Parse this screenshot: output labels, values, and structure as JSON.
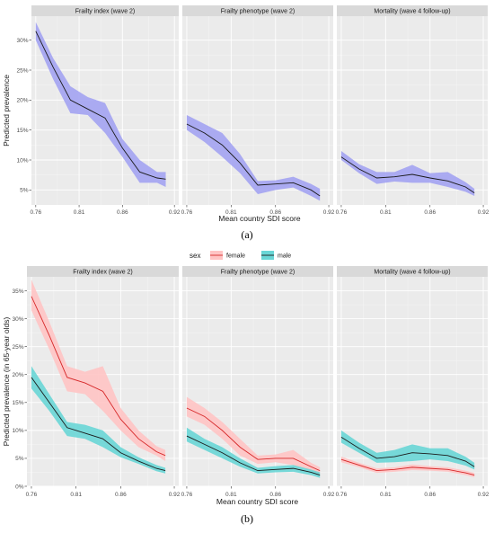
{
  "figure_labels": {
    "a": "(a)",
    "b": "(b)"
  },
  "colors": {
    "panel_bg": "#ebebeb",
    "grid_major": "#ffffff",
    "strip_bg": "#d9d9d9",
    "overall_ribbon": "#a3a3f2",
    "overall_line": "#1a1a1a",
    "female_ribbon": "#ffc4c4",
    "female_line": "#d62728",
    "male_ribbon": "#69d6d6",
    "male_line": "#1a1a1a"
  },
  "chart_data": [
    {
      "type": "line",
      "id": "a",
      "xlabel": "Mean country SDI score",
      "ylabel": "Predicted prevalence",
      "x_ticks": [
        "0.76",
        "0.81",
        "0.86",
        "0.92"
      ],
      "x_tick_values": [
        0.76,
        0.81,
        0.86,
        0.92
      ],
      "xlim": [
        0.755,
        0.925
      ],
      "y_ticks": [
        "5%",
        "10%",
        "15%",
        "20%",
        "25%",
        "30%"
      ],
      "y_tick_values": [
        5,
        10,
        15,
        20,
        25,
        30
      ],
      "ylim": [
        2.5,
        34
      ],
      "grid": true,
      "facets": [
        {
          "title": "Frailty index (wave 2)",
          "series": [
            {
              "x": [
                0.76,
                0.78,
                0.8,
                0.82,
                0.84,
                0.86,
                0.88,
                0.9,
                0.91
              ],
              "y": [
                31.5,
                25.5,
                20.0,
                18.5,
                17.0,
                12.0,
                8.0,
                7.0,
                6.8
              ],
              "lower": [
                30.0,
                23.5,
                17.8,
                17.5,
                14.5,
                10.5,
                6.2,
                6.2,
                5.5
              ],
              "upper": [
                33.0,
                27.0,
                22.3,
                20.5,
                19.5,
                13.5,
                10.0,
                8.0,
                8.0
              ]
            }
          ]
        },
        {
          "title": "Frailty phenotype (wave 2)",
          "series": [
            {
              "x": [
                0.76,
                0.78,
                0.8,
                0.82,
                0.84,
                0.86,
                0.88,
                0.9,
                0.91
              ],
              "y": [
                16.0,
                14.5,
                12.5,
                9.5,
                5.8,
                6.0,
                6.2,
                5.0,
                4.0
              ],
              "lower": [
                15.0,
                13.0,
                10.5,
                7.8,
                4.3,
                5.0,
                5.4,
                4.0,
                3.2
              ],
              "upper": [
                17.5,
                16.0,
                14.5,
                11.0,
                6.5,
                6.6,
                7.2,
                6.0,
                5.2
              ]
            }
          ]
        },
        {
          "title": "Mortality (wave 4 follow-up)",
          "series": [
            {
              "x": [
                0.76,
                0.78,
                0.8,
                0.82,
                0.84,
                0.86,
                0.88,
                0.9,
                0.91
              ],
              "y": [
                10.5,
                8.5,
                7.0,
                7.2,
                7.6,
                7.0,
                6.5,
                5.5,
                4.5
              ],
              "lower": [
                10.0,
                7.8,
                6.0,
                6.4,
                6.2,
                6.2,
                5.5,
                4.7,
                4.0
              ],
              "upper": [
                11.5,
                9.3,
                8.0,
                8.0,
                9.2,
                7.8,
                8.0,
                6.3,
                5.2
              ]
            }
          ]
        }
      ]
    },
    {
      "type": "line",
      "id": "b",
      "legend": {
        "title": "sex",
        "placement": "top",
        "entries": [
          {
            "key": "female",
            "label": "female"
          },
          {
            "key": "male",
            "label": "male"
          }
        ]
      },
      "xlabel": "Mean country SDI score",
      "ylabel": "Predicted prevalence (in 65-year olds)",
      "x_ticks": [
        "0.76",
        "0.81",
        "0.86",
        "0.92"
      ],
      "x_tick_values": [
        0.76,
        0.81,
        0.86,
        0.92
      ],
      "xlim": [
        0.755,
        0.925
      ],
      "y_ticks": [
        "0%",
        "5%",
        "10%",
        "15%",
        "20%",
        "25%",
        "30%",
        "35%"
      ],
      "y_tick_values": [
        0,
        5,
        10,
        15,
        20,
        25,
        30,
        35
      ],
      "ylim": [
        0,
        37.5
      ],
      "grid": true,
      "facets": [
        {
          "title": "Frailty index (wave 2)",
          "series": [
            {
              "key": "female",
              "x": [
                0.76,
                0.78,
                0.8,
                0.82,
                0.84,
                0.86,
                0.88,
                0.9,
                0.91
              ],
              "y": [
                34.0,
                27.0,
                19.5,
                18.5,
                17.0,
                12.0,
                8.5,
                6.2,
                5.5
              ],
              "lower": [
                31.5,
                24.5,
                17.0,
                16.5,
                13.5,
                10.0,
                7.0,
                5.5,
                4.5
              ],
              "upper": [
                37.0,
                29.5,
                21.5,
                20.5,
                21.5,
                14.0,
                10.0,
                7.2,
                6.5
              ]
            },
            {
              "key": "male",
              "x": [
                0.76,
                0.78,
                0.8,
                0.82,
                0.84,
                0.86,
                0.88,
                0.9,
                0.91
              ],
              "y": [
                19.5,
                15.0,
                10.5,
                9.5,
                8.5,
                6.0,
                4.5,
                3.2,
                2.8
              ],
              "lower": [
                17.5,
                13.5,
                9.0,
                8.5,
                7.0,
                5.2,
                4.0,
                2.7,
                2.3
              ],
              "upper": [
                21.5,
                16.5,
                11.5,
                11.0,
                10.0,
                7.0,
                5.2,
                3.8,
                3.3
              ]
            }
          ]
        },
        {
          "title": "Frailty phenotype (wave 2)",
          "series": [
            {
              "key": "female",
              "x": [
                0.76,
                0.78,
                0.8,
                0.82,
                0.84,
                0.86,
                0.88,
                0.9,
                0.91
              ],
              "y": [
                14.0,
                12.5,
                10.0,
                7.0,
                4.8,
                5.0,
                5.0,
                3.5,
                2.8
              ],
              "lower": [
                12.5,
                11.0,
                8.5,
                5.5,
                4.0,
                4.3,
                3.8,
                2.8,
                2.3
              ],
              "upper": [
                16.0,
                14.0,
                11.5,
                8.5,
                5.5,
                5.7,
                6.5,
                4.2,
                3.4
              ]
            },
            {
              "key": "male",
              "x": [
                0.76,
                0.78,
                0.8,
                0.82,
                0.84,
                0.86,
                0.88,
                0.9,
                0.91
              ],
              "y": [
                9.0,
                7.5,
                6.0,
                4.2,
                2.8,
                3.0,
                3.2,
                2.5,
                2.0
              ],
              "lower": [
                8.0,
                6.5,
                5.0,
                3.5,
                2.3,
                2.5,
                2.6,
                2.0,
                1.5
              ],
              "upper": [
                10.5,
                8.5,
                7.0,
                5.0,
                3.3,
                3.6,
                3.8,
                3.0,
                2.5
              ]
            }
          ]
        },
        {
          "title": "Mortality (wave 4 follow-up)",
          "series": [
            {
              "key": "female",
              "x": [
                0.76,
                0.78,
                0.8,
                0.82,
                0.84,
                0.86,
                0.88,
                0.9,
                0.91
              ],
              "y": [
                4.8,
                3.8,
                2.8,
                3.0,
                3.4,
                3.2,
                3.0,
                2.4,
                2.0
              ],
              "lower": [
                4.3,
                3.4,
                2.4,
                2.6,
                2.9,
                2.8,
                2.6,
                2.0,
                1.6
              ],
              "upper": [
                5.3,
                4.2,
                3.2,
                3.4,
                3.9,
                3.6,
                3.4,
                2.8,
                2.4
              ]
            },
            {
              "key": "male",
              "x": [
                0.76,
                0.78,
                0.8,
                0.82,
                0.84,
                0.86,
                0.88,
                0.9,
                0.91
              ],
              "y": [
                8.8,
                6.8,
                5.0,
                5.3,
                6.0,
                5.8,
                5.5,
                4.5,
                3.5
              ],
              "lower": [
                7.8,
                6.0,
                4.2,
                4.3,
                4.5,
                4.8,
                4.5,
                3.7,
                3.0
              ],
              "upper": [
                10.0,
                7.8,
                6.0,
                6.5,
                7.5,
                6.8,
                6.8,
                5.3,
                4.2
              ]
            }
          ]
        }
      ]
    }
  ]
}
